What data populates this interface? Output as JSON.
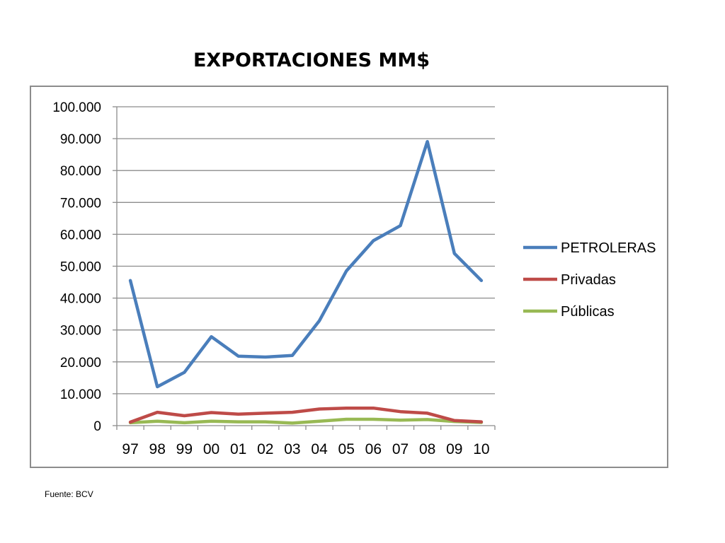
{
  "title": "EXPORTACIONES MM$",
  "source": "Fuente: BCV",
  "chart_data": {
    "type": "line",
    "title": "EXPORTACIONES MM$",
    "xlabel": "",
    "ylabel": "",
    "categories": [
      "97",
      "98",
      "99",
      "00",
      "01",
      "02",
      "03",
      "04",
      "05",
      "06",
      "07",
      "08",
      "09",
      "10"
    ],
    "ylim": [
      0,
      100000
    ],
    "y_ticks": [
      0,
      10000,
      20000,
      30000,
      40000,
      50000,
      60000,
      70000,
      80000,
      90000,
      100000
    ],
    "y_tick_labels": [
      "0",
      "10.000",
      "20.000",
      "30.000",
      "40.000",
      "50.000",
      "60.000",
      "70.000",
      "80.000",
      "90.000",
      "100.000"
    ],
    "grid": "horizontal",
    "legend_position": "right",
    "series": [
      {
        "name": "PETROLERAS",
        "color": "#4a7ebb",
        "values": [
          45500,
          12200,
          16700,
          27900,
          21800,
          21500,
          22000,
          32900,
          48500,
          58000,
          62700,
          89100,
          54000,
          45500
        ]
      },
      {
        "name": "Privadas",
        "color": "#be4b48",
        "values": [
          1100,
          4200,
          3100,
          4100,
          3600,
          3900,
          4200,
          5200,
          5500,
          5500,
          4400,
          3900,
          1600,
          1200
        ]
      },
      {
        "name": "Públicas",
        "color": "#98b954",
        "values": [
          900,
          1400,
          900,
          1400,
          1200,
          1200,
          800,
          1400,
          2000,
          2000,
          1700,
          1900,
          1300,
          1000
        ]
      }
    ]
  }
}
